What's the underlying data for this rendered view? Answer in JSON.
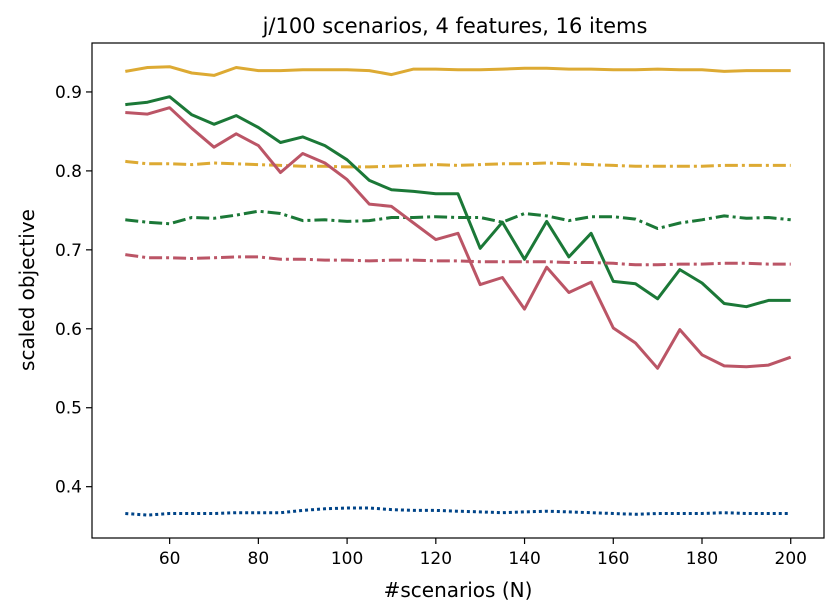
{
  "chart_data": {
    "type": "line",
    "title": "j/100 scenarios, 4 features, 16 items",
    "xlabel": "#scenarios (N)",
    "ylabel": "scaled objective",
    "xlim": [
      42.5,
      207.5
    ],
    "ylim": [
      0.335,
      0.962
    ],
    "xticks": [
      60,
      80,
      100,
      120,
      140,
      160,
      180,
      200
    ],
    "yticks": [
      0.4,
      0.5,
      0.6,
      0.7,
      0.8,
      0.9
    ],
    "grid": false,
    "x": [
      50,
      55,
      60,
      65,
      70,
      75,
      80,
      85,
      90,
      95,
      100,
      105,
      110,
      115,
      120,
      125,
      130,
      135,
      140,
      145,
      150,
      155,
      160,
      165,
      170,
      175,
      180,
      185,
      190,
      195,
      200
    ],
    "series": [
      {
        "color": "#DDAA33",
        "dash": "solid",
        "values": [
          0.926,
          0.931,
          0.932,
          0.924,
          0.921,
          0.931,
          0.927,
          0.927,
          0.928,
          0.928,
          0.928,
          0.927,
          0.922,
          0.929,
          0.929,
          0.928,
          0.928,
          0.929,
          0.93,
          0.93,
          0.929,
          0.929,
          0.928,
          0.928,
          0.929,
          0.928,
          0.928,
          0.926,
          0.927,
          0.927,
          0.927
        ]
      },
      {
        "color": "#DDAA33",
        "dash": "dashdot",
        "values": [
          0.812,
          0.809,
          0.809,
          0.808,
          0.81,
          0.809,
          0.808,
          0.807,
          0.806,
          0.806,
          0.805,
          0.805,
          0.806,
          0.807,
          0.808,
          0.807,
          0.808,
          0.809,
          0.809,
          0.81,
          0.809,
          0.808,
          0.807,
          0.806,
          0.806,
          0.806,
          0.806,
          0.807,
          0.807,
          0.807,
          0.807
        ]
      },
      {
        "color": "#1B7837",
        "dash": "solid",
        "values": [
          0.884,
          0.887,
          0.894,
          0.871,
          0.859,
          0.87,
          0.855,
          0.836,
          0.843,
          0.832,
          0.814,
          0.788,
          0.776,
          0.774,
          0.771,
          0.771,
          0.702,
          0.735,
          0.688,
          0.736,
          0.691,
          0.721,
          0.66,
          0.657,
          0.638,
          0.675,
          0.658,
          0.632,
          0.628,
          0.636,
          0.636
        ]
      },
      {
        "color": "#1B7837",
        "dash": "dashdot",
        "values": [
          0.738,
          0.735,
          0.733,
          0.741,
          0.74,
          0.744,
          0.749,
          0.746,
          0.737,
          0.738,
          0.736,
          0.737,
          0.741,
          0.741,
          0.742,
          0.741,
          0.741,
          0.735,
          0.746,
          0.743,
          0.737,
          0.742,
          0.742,
          0.739,
          0.727,
          0.734,
          0.738,
          0.743,
          0.74,
          0.741,
          0.738
        ]
      },
      {
        "color": "#BB5566",
        "dash": "solid",
        "values": [
          0.874,
          0.872,
          0.88,
          0.854,
          0.83,
          0.847,
          0.832,
          0.798,
          0.822,
          0.81,
          0.789,
          0.758,
          0.755,
          0.734,
          0.713,
          0.721,
          0.656,
          0.665,
          0.625,
          0.678,
          0.646,
          0.659,
          0.601,
          0.582,
          0.55,
          0.599,
          0.567,
          0.553,
          0.552,
          0.554,
          0.564
        ]
      },
      {
        "color": "#BB5566",
        "dash": "dashdot",
        "values": [
          0.694,
          0.69,
          0.69,
          0.689,
          0.69,
          0.691,
          0.691,
          0.688,
          0.688,
          0.687,
          0.687,
          0.686,
          0.687,
          0.687,
          0.686,
          0.686,
          0.685,
          0.685,
          0.685,
          0.685,
          0.684,
          0.684,
          0.683,
          0.681,
          0.681,
          0.682,
          0.682,
          0.683,
          0.683,
          0.682,
          0.682
        ]
      },
      {
        "color": "#004488",
        "dash": "dotted",
        "values": [
          0.366,
          0.364,
          0.366,
          0.366,
          0.366,
          0.367,
          0.367,
          0.367,
          0.37,
          0.372,
          0.373,
          0.373,
          0.371,
          0.37,
          0.37,
          0.369,
          0.368,
          0.367,
          0.368,
          0.369,
          0.368,
          0.367,
          0.366,
          0.365,
          0.366,
          0.366,
          0.366,
          0.367,
          0.366,
          0.366,
          0.366
        ]
      }
    ]
  }
}
